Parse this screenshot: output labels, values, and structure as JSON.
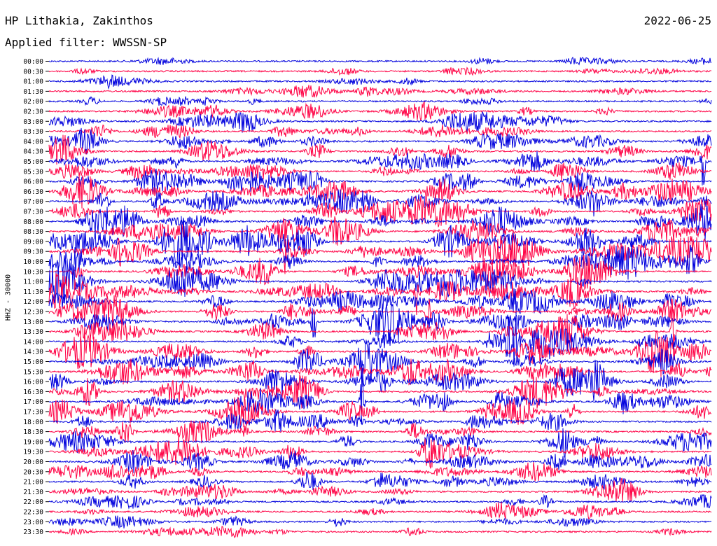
{
  "header": {
    "station": "HP Lithakia, Zakinthos",
    "date": "2022-06-25",
    "filter": "Applied filter: WWSSN-SP"
  },
  "chart_data": {
    "type": "line",
    "chart_kind": "helicorder",
    "title": "HP Lithakia, Zakinthos",
    "ylabel": "HHZ - 30000",
    "xlabel": "",
    "colors": [
      "#0000dd",
      "#ff0044"
    ],
    "time_labels": [
      "00:00",
      "00:30",
      "01:00",
      "01:30",
      "02:00",
      "02:30",
      "03:00",
      "03:30",
      "04:00",
      "04:30",
      "05:00",
      "05:30",
      "06:00",
      "06:30",
      "07:00",
      "07:30",
      "08:00",
      "08:30",
      "09:00",
      "09:30",
      "10:00",
      "10:30",
      "11:00",
      "11:30",
      "12:00",
      "12:30",
      "13:00",
      "13:30",
      "14:00",
      "14:30",
      "15:00",
      "15:30",
      "16:00",
      "16:30",
      "17:00",
      "17:30",
      "18:00",
      "18:30",
      "19:00",
      "19:30",
      "20:00",
      "20:30",
      "21:00",
      "21:30",
      "22:00",
      "22:30",
      "23:00",
      "23:30"
    ],
    "trace_activity": [
      0.15,
      0.18,
      0.12,
      0.25,
      0.35,
      0.4,
      0.5,
      0.6,
      0.6,
      0.55,
      0.65,
      0.7,
      0.8,
      0.85,
      0.9,
      0.9,
      0.95,
      0.95,
      1.0,
      1.0,
      1.0,
      0.9,
      0.9,
      0.85,
      0.9,
      0.9,
      0.85,
      0.85,
      0.85,
      0.85,
      0.85,
      0.9,
      0.85,
      0.85,
      0.8,
      0.8,
      0.75,
      0.75,
      0.8,
      0.75,
      0.7,
      0.65,
      0.55,
      0.55,
      0.5,
      0.4,
      0.3,
      0.25
    ]
  }
}
